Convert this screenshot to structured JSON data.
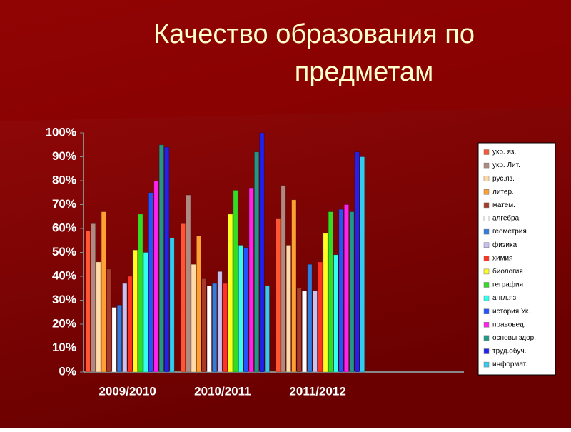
{
  "chart_data": {
    "type": "bar",
    "title": [
      "Качество образования по",
      "предметам"
    ],
    "categories": [
      "2009/2010",
      "2010/2011",
      "2011/2012",
      null
    ],
    "ylim": [
      0,
      100
    ],
    "yticks": [
      {
        "value": 0,
        "label": "0%"
      },
      {
        "value": 10,
        "label": "10%"
      },
      {
        "value": 20,
        "label": "20%"
      },
      {
        "value": 30,
        "label": "30%"
      },
      {
        "value": 40,
        "label": "40%"
      },
      {
        "value": 50,
        "label": "50%"
      },
      {
        "value": 60,
        "label": "60%"
      },
      {
        "value": 70,
        "label": "70%"
      },
      {
        "value": 80,
        "label": "80%"
      },
      {
        "value": 90,
        "label": "90%"
      },
      {
        "value": 100,
        "label": "100%"
      }
    ],
    "legend": "right",
    "series": [
      {
        "name": "укр. яз.",
        "color": "#ff5533",
        "values": [
          59,
          62,
          64,
          null
        ]
      },
      {
        "name": "укр. Лит.",
        "color": "#b08a80",
        "values": [
          62,
          74,
          78,
          null
        ]
      },
      {
        "name": "рус.яз.",
        "color": "#ffd9a8",
        "values": [
          46,
          45,
          53,
          null
        ]
      },
      {
        "name": "литер.",
        "color": "#ffa033",
        "values": [
          67,
          57,
          72,
          null
        ]
      },
      {
        "name": "матем.",
        "color": "#a83a2a",
        "values": [
          43,
          39,
          35,
          null
        ]
      },
      {
        "name": "алгебра",
        "color": "#ffffff",
        "values": [
          27,
          36,
          34,
          null
        ]
      },
      {
        "name": "геометрия",
        "color": "#2f7fe0",
        "values": [
          28,
          37,
          45,
          null
        ]
      },
      {
        "name": "физика",
        "color": "#c8c0f0",
        "values": [
          37,
          42,
          34,
          null
        ]
      },
      {
        "name": "химия",
        "color": "#ff3322",
        "values": [
          40,
          37,
          46,
          null
        ]
      },
      {
        "name": "биология",
        "color": "#ffff22",
        "values": [
          51,
          66,
          58,
          null
        ]
      },
      {
        "name": "геграфия",
        "color": "#33dd22",
        "values": [
          66,
          76,
          67,
          null
        ]
      },
      {
        "name": "англ.яз",
        "color": "#33ffee",
        "values": [
          50,
          53,
          49,
          null
        ]
      },
      {
        "name": "история Ук.",
        "color": "#2255ff",
        "values": [
          75,
          52,
          68,
          null
        ]
      },
      {
        "name": "правовед.",
        "color": "#ff22ee",
        "values": [
          80,
          77,
          70,
          null
        ]
      },
      {
        "name": "основы здор.",
        "color": "#229988",
        "values": [
          95,
          92,
          67,
          null
        ]
      },
      {
        "name": "труд.обуч.",
        "color": "#2222ee",
        "values": [
          94,
          100,
          92,
          null
        ]
      },
      {
        "name": "информат.",
        "color": "#33ccee",
        "values": [
          56,
          36,
          90,
          null
        ]
      }
    ]
  }
}
